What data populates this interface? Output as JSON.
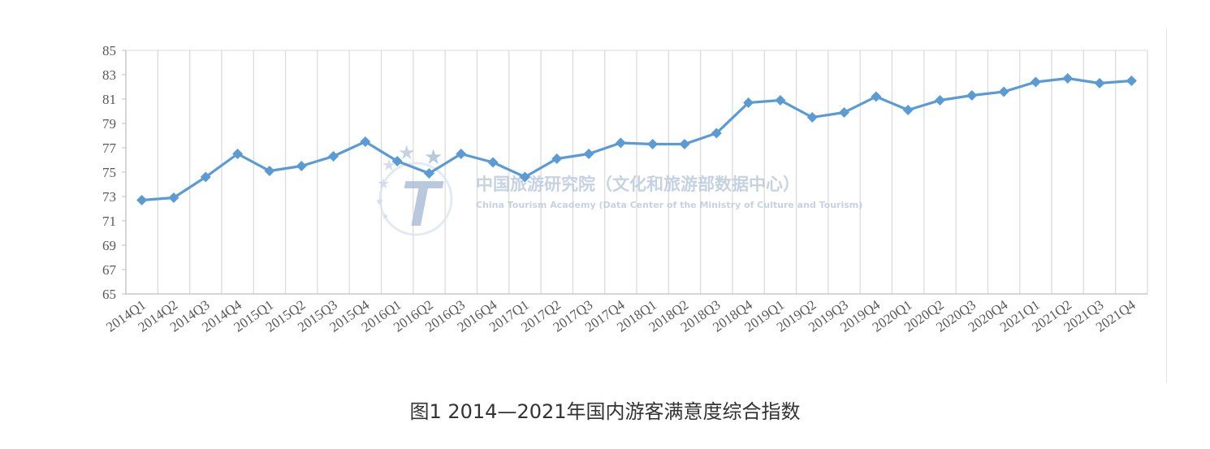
{
  "chart_data": {
    "type": "line",
    "title": "图1 2014—2021年国内游客满意度综合指数",
    "categories": [
      "2014Q1",
      "2014Q2",
      "2014Q3",
      "2014Q4",
      "2015Q1",
      "2015Q2",
      "2015Q3",
      "2015Q4",
      "2016Q1",
      "2016Q2",
      "2016Q3",
      "2016Q4",
      "2017Q1",
      "2017Q2",
      "2017Q3",
      "2017Q4",
      "2018Q1",
      "2018Q2",
      "2018Q3",
      "2018Q4",
      "2019Q1",
      "2019Q2",
      "2019Q3",
      "2019Q4",
      "2020Q1",
      "2020Q2",
      "2020Q3",
      "2020Q4",
      "2021Q1",
      "2021Q2",
      "2021Q3",
      "2021Q4"
    ],
    "series": [
      {
        "values": [
          72.7,
          72.9,
          74.6,
          76.5,
          75.1,
          75.5,
          76.3,
          77.5,
          75.9,
          74.9,
          76.5,
          75.8,
          74.6,
          76.1,
          76.5,
          77.4,
          77.3,
          77.3,
          78.2,
          80.7,
          80.9,
          79.5,
          79.9,
          81.2,
          80.1,
          80.9,
          81.3,
          81.6,
          82.4,
          82.7,
          82.3,
          82.5
        ],
        "color": "#5b9bd5"
      }
    ],
    "yticks": [
      "65",
      "67",
      "69",
      "71",
      "73",
      "75",
      "77",
      "79",
      "81",
      "83",
      "85"
    ],
    "ylim": [
      65,
      85
    ],
    "xlabel": "",
    "ylabel": "",
    "grid": "vertical",
    "legend": "none"
  },
  "watermark": {
    "cn": "中国旅游研究院（文化和旅游部数据中心）",
    "en": "China Tourism Academy (Data Center of the Ministry of Culture and Tourism)",
    "logo_letter": "T"
  },
  "caption": "图1 2014—2021年国内游客满意度综合指数",
  "colors": {
    "line": "#5b9bd5",
    "grid": "#d9d9d9",
    "watermark": "#b9c7dc"
  }
}
